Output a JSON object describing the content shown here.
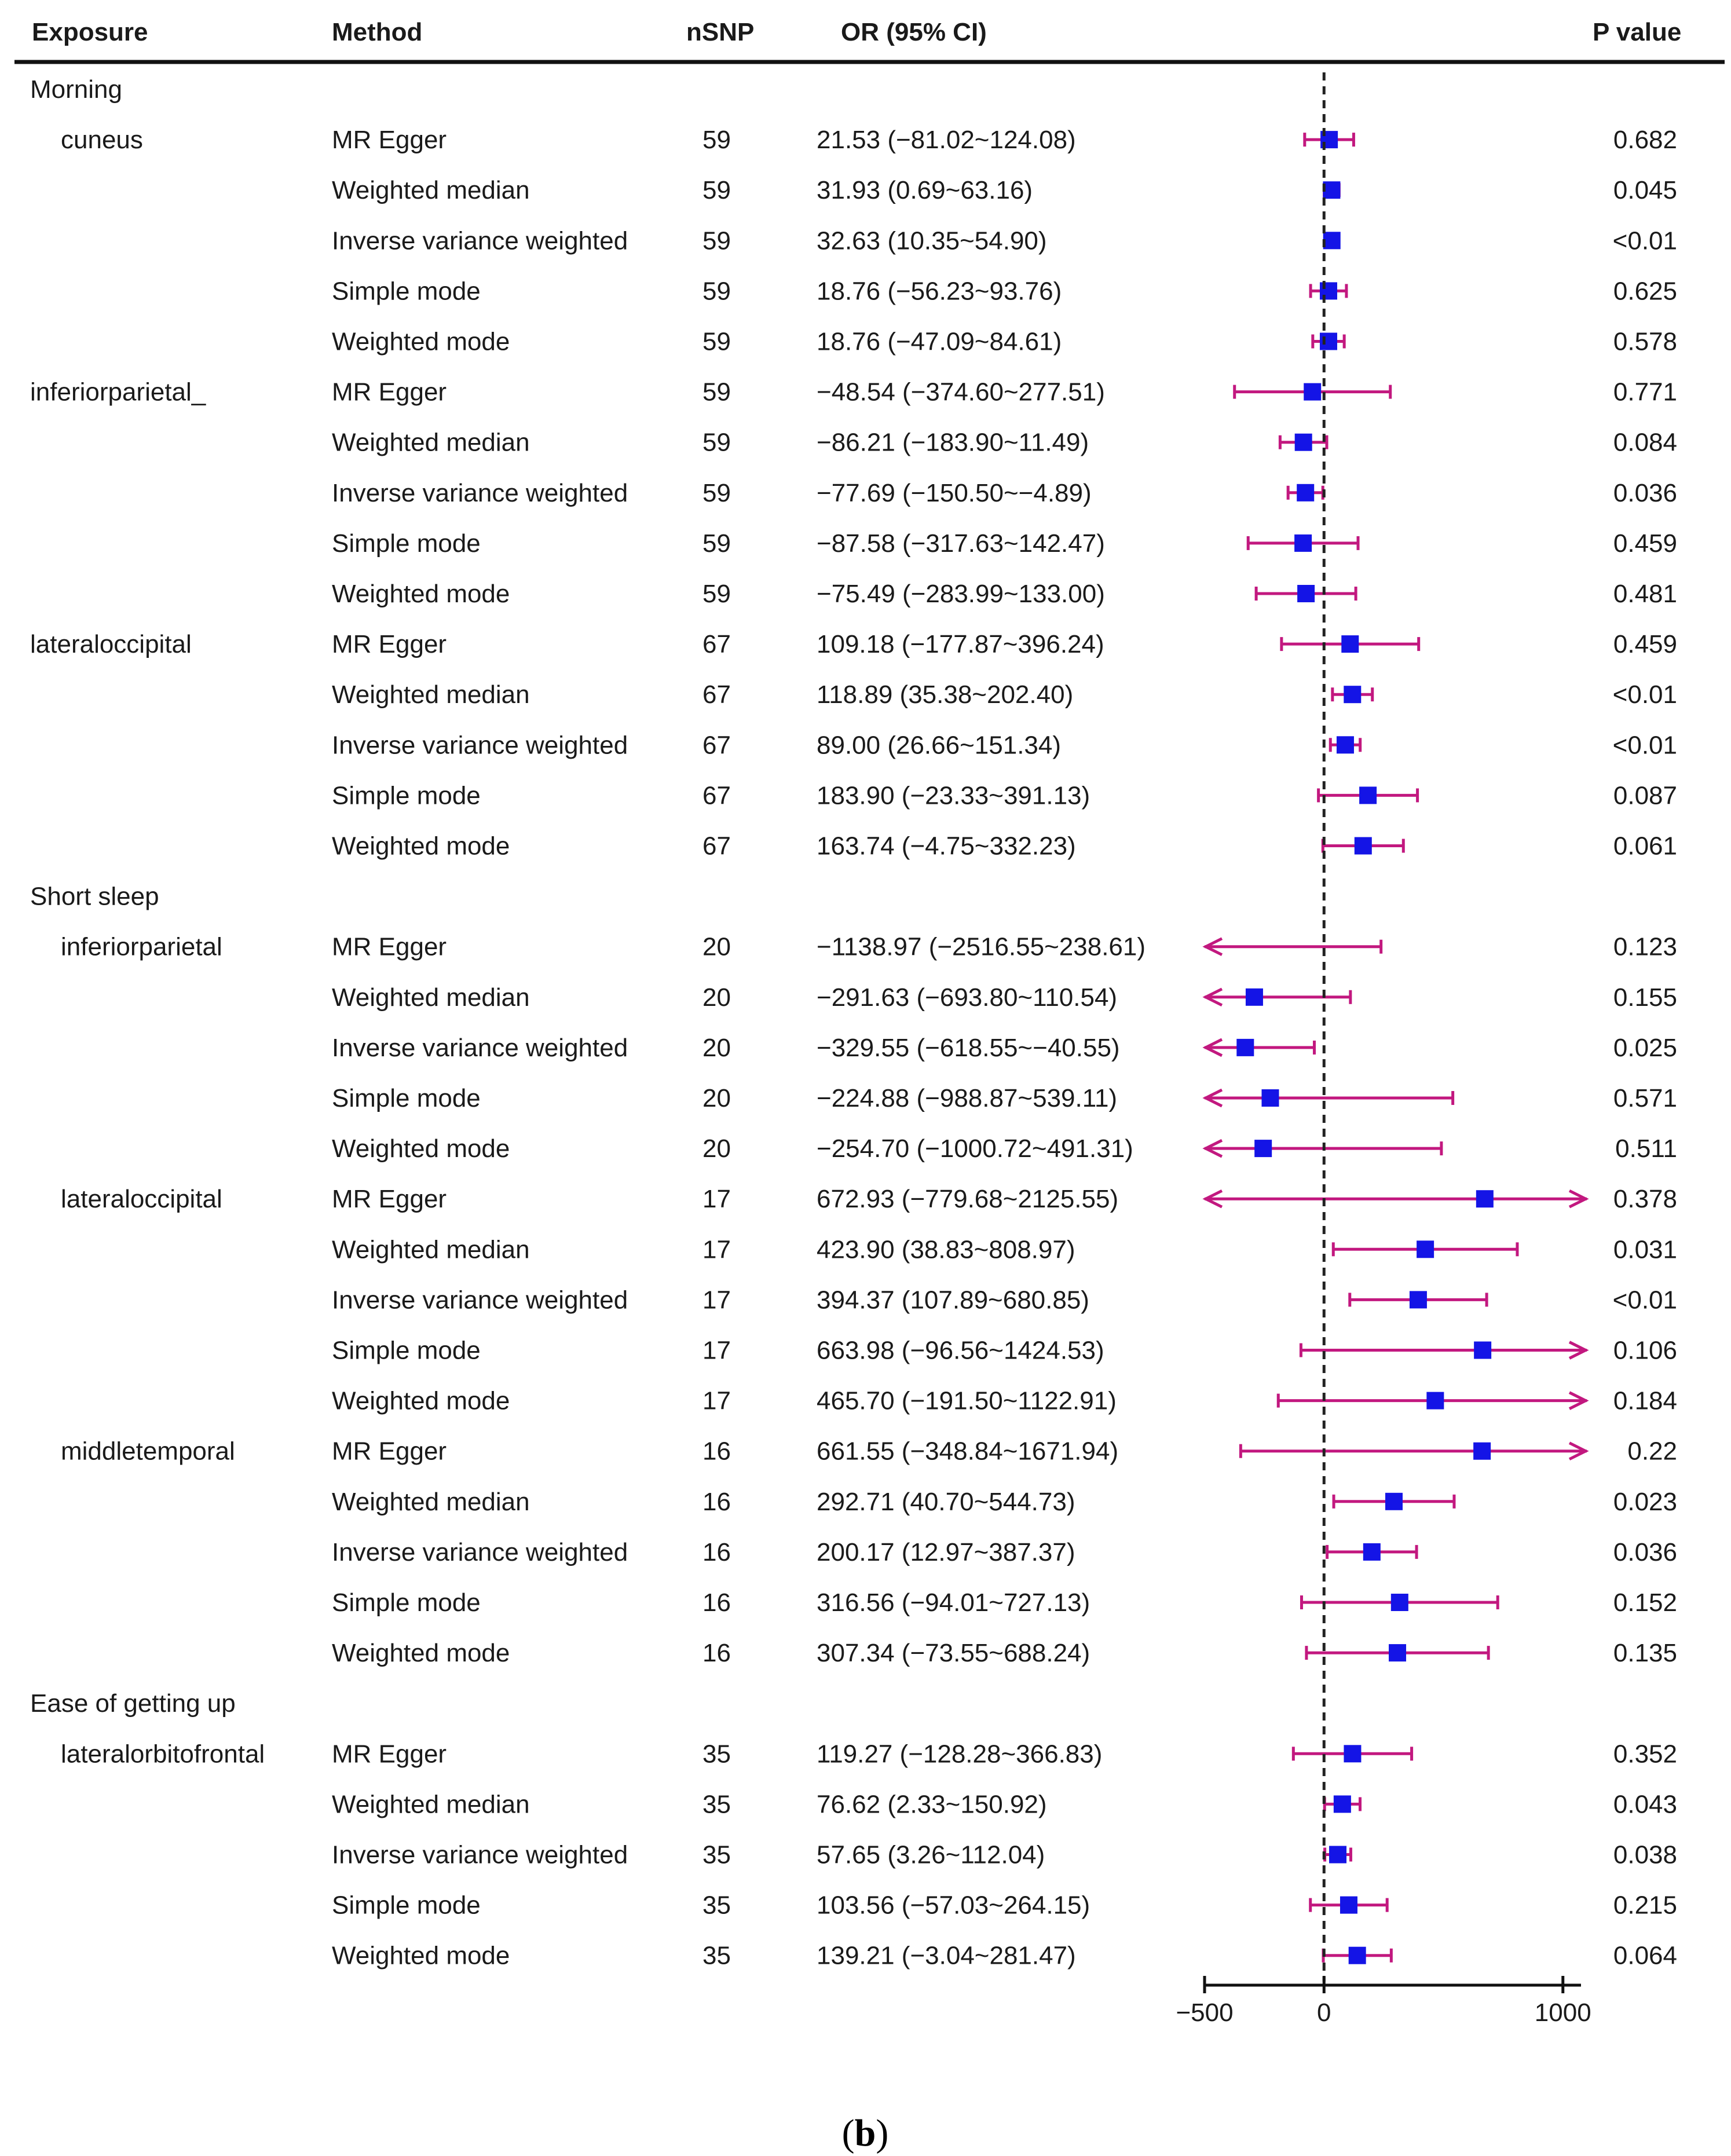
{
  "chart_data": {
    "type": "forest",
    "caption_prefix": "(",
    "caption_letter": "b",
    "caption_suffix": ")",
    "headers": {
      "exposure": "Exposure",
      "method": "Method",
      "nsnp": "nSNP",
      "or": "OR (95% CI)",
      "p": "P value"
    },
    "x_axis": {
      "range": [
        -500,
        1100
      ],
      "ticks": [
        -500,
        0,
        1000
      ],
      "tick_labels": [
        "−500",
        "0",
        "1000"
      ],
      "reference_line": 0
    },
    "colors": {
      "point": "#1414e6",
      "ci": "#c2187f",
      "reference": "#222222",
      "text": "#1a1a1a"
    },
    "rows": [
      {
        "type": "group",
        "label": "Morning"
      },
      {
        "type": "data",
        "exposure": "cuneus",
        "method": "MR Egger",
        "nsnp": "59",
        "or_text": "21.53 (−81.02~124.08)",
        "p": "0.682",
        "or": 21.53,
        "lo": -81.02,
        "hi": 124.08
      },
      {
        "type": "data",
        "exposure": "",
        "method": "Weighted median",
        "nsnp": "59",
        "or_text": "31.93 (0.69~63.16)",
        "p": "0.045",
        "or": 31.93,
        "lo": 0.69,
        "hi": 63.16
      },
      {
        "type": "data",
        "exposure": "",
        "method": "Inverse variance weighted",
        "nsnp": "59",
        "or_text": "32.63 (10.35~54.90)",
        "p": "<0.01",
        "or": 32.63,
        "lo": 10.35,
        "hi": 54.9
      },
      {
        "type": "data",
        "exposure": "",
        "method": "Simple mode",
        "nsnp": "59",
        "or_text": "18.76 (−56.23~93.76)",
        "p": "0.625",
        "or": 18.76,
        "lo": -56.23,
        "hi": 93.76
      },
      {
        "type": "data",
        "exposure": "",
        "method": "Weighted mode",
        "nsnp": "59",
        "or_text": "18.76 (−47.09~84.61)",
        "p": "0.578",
        "or": 18.76,
        "lo": -47.09,
        "hi": 84.61
      },
      {
        "type": "data",
        "exposure": "inferiorparietal_",
        "method": "MR Egger",
        "nsnp": "59",
        "or_text": "−48.54 (−374.60~277.51)",
        "p": "0.771",
        "or": -48.54,
        "lo": -374.6,
        "hi": 277.51,
        "flush": true
      },
      {
        "type": "data",
        "exposure": "",
        "method": "Weighted median",
        "nsnp": "59",
        "or_text": "−86.21 (−183.90~11.49)",
        "p": "0.084",
        "or": -86.21,
        "lo": -183.9,
        "hi": 11.49
      },
      {
        "type": "data",
        "exposure": "",
        "method": "Inverse variance weighted",
        "nsnp": "59",
        "or_text": "−77.69 (−150.50~−4.89)",
        "p": "0.036",
        "or": -77.69,
        "lo": -150.5,
        "hi": -4.89
      },
      {
        "type": "data",
        "exposure": "",
        "method": "Simple mode",
        "nsnp": "59",
        "or_text": "−87.58 (−317.63~142.47)",
        "p": "0.459",
        "or": -87.58,
        "lo": -317.63,
        "hi": 142.47
      },
      {
        "type": "data",
        "exposure": "",
        "method": "Weighted mode",
        "nsnp": "59",
        "or_text": "−75.49 (−283.99~133.00)",
        "p": "0.481",
        "or": -75.49,
        "lo": -283.99,
        "hi": 133.0
      },
      {
        "type": "data",
        "exposure": "lateraloccipital",
        "method": "MR Egger",
        "nsnp": "67",
        "or_text": "109.18 (−177.87~396.24)",
        "p": "0.459",
        "or": 109.18,
        "lo": -177.87,
        "hi": 396.24,
        "flush": true
      },
      {
        "type": "data",
        "exposure": "",
        "method": "Weighted median",
        "nsnp": "67",
        "or_text": "118.89 (35.38~202.40)",
        "p": "<0.01",
        "or": 118.89,
        "lo": 35.38,
        "hi": 202.4
      },
      {
        "type": "data",
        "exposure": "",
        "method": "Inverse variance weighted",
        "nsnp": "67",
        "or_text": "89.00 (26.66~151.34)",
        "p": "<0.01",
        "or": 89.0,
        "lo": 26.66,
        "hi": 151.34
      },
      {
        "type": "data",
        "exposure": "",
        "method": "Simple mode",
        "nsnp": "67",
        "or_text": "183.90 (−23.33~391.13)",
        "p": "0.087",
        "or": 183.9,
        "lo": -23.33,
        "hi": 391.13
      },
      {
        "type": "data",
        "exposure": "",
        "method": "Weighted mode",
        "nsnp": "67",
        "or_text": "163.74 (−4.75~332.23)",
        "p": "0.061",
        "or": 163.74,
        "lo": -4.75,
        "hi": 332.23
      },
      {
        "type": "group",
        "label": "Short sleep"
      },
      {
        "type": "data",
        "exposure": "inferiorparietal",
        "method": "MR Egger",
        "nsnp": "20",
        "or_text": "−1138.97 (−2516.55~238.61)",
        "p": "0.123",
        "or": -1138.97,
        "lo": -2516.55,
        "hi": 238.61
      },
      {
        "type": "data",
        "exposure": "",
        "method": "Weighted median",
        "nsnp": "20",
        "or_text": "−291.63 (−693.80~110.54)",
        "p": "0.155",
        "or": -291.63,
        "lo": -693.8,
        "hi": 110.54
      },
      {
        "type": "data",
        "exposure": "",
        "method": "Inverse variance weighted",
        "nsnp": "20",
        "or_text": "−329.55 (−618.55~−40.55)",
        "p": "0.025",
        "or": -329.55,
        "lo": -618.55,
        "hi": -40.55
      },
      {
        "type": "data",
        "exposure": "",
        "method": "Simple mode",
        "nsnp": "20",
        "or_text": "−224.88 (−988.87~539.11)",
        "p": "0.571",
        "or": -224.88,
        "lo": -988.87,
        "hi": 539.11
      },
      {
        "type": "data",
        "exposure": "",
        "method": "Weighted mode",
        "nsnp": "20",
        "or_text": "−254.70 (−1000.72~491.31)",
        "p": "0.511",
        "or": -254.7,
        "lo": -1000.72,
        "hi": 491.31
      },
      {
        "type": "data",
        "exposure": "lateraloccipital",
        "method": "MR Egger",
        "nsnp": "17",
        "or_text": "672.93 (−779.68~2125.55)",
        "p": "0.378",
        "or": 672.93,
        "lo": -779.68,
        "hi": 2125.55
      },
      {
        "type": "data",
        "exposure": "",
        "method": "Weighted median",
        "nsnp": "17",
        "or_text": "423.90 (38.83~808.97)",
        "p": "0.031",
        "or": 423.9,
        "lo": 38.83,
        "hi": 808.97
      },
      {
        "type": "data",
        "exposure": "",
        "method": "Inverse variance weighted",
        "nsnp": "17",
        "or_text": "394.37 (107.89~680.85)",
        "p": "<0.01",
        "or": 394.37,
        "lo": 107.89,
        "hi": 680.85
      },
      {
        "type": "data",
        "exposure": "",
        "method": "Simple mode",
        "nsnp": "17",
        "or_text": "663.98 (−96.56~1424.53)",
        "p": "0.106",
        "or": 663.98,
        "lo": -96.56,
        "hi": 1424.53
      },
      {
        "type": "data",
        "exposure": "",
        "method": "Weighted mode",
        "nsnp": "17",
        "or_text": "465.70 (−191.50~1122.91)",
        "p": "0.184",
        "or": 465.7,
        "lo": -191.5,
        "hi": 1122.91
      },
      {
        "type": "data",
        "exposure": "middletemporal",
        "method": "MR Egger",
        "nsnp": "16",
        "or_text": "661.55 (−348.84~1671.94)",
        "p": "0.22",
        "or": 661.55,
        "lo": -348.84,
        "hi": 1671.94
      },
      {
        "type": "data",
        "exposure": "",
        "method": "Weighted median",
        "nsnp": "16",
        "or_text": "292.71 (40.70~544.73)",
        "p": "0.023",
        "or": 292.71,
        "lo": 40.7,
        "hi": 544.73
      },
      {
        "type": "data",
        "exposure": "",
        "method": "Inverse variance weighted",
        "nsnp": "16",
        "or_text": "200.17 (12.97~387.37)",
        "p": "0.036",
        "or": 200.17,
        "lo": 12.97,
        "hi": 387.37
      },
      {
        "type": "data",
        "exposure": "",
        "method": "Simple mode",
        "nsnp": "16",
        "or_text": "316.56 (−94.01~727.13)",
        "p": "0.152",
        "or": 316.56,
        "lo": -94.01,
        "hi": 727.13
      },
      {
        "type": "data",
        "exposure": "",
        "method": "Weighted mode",
        "nsnp": "16",
        "or_text": "307.34 (−73.55~688.24)",
        "p": "0.135",
        "or": 307.34,
        "lo": -73.55,
        "hi": 688.24
      },
      {
        "type": "group",
        "label": "Ease of getting up"
      },
      {
        "type": "data",
        "exposure": "lateralorbitofrontal",
        "method": "MR Egger",
        "nsnp": "35",
        "or_text": "119.27 (−128.28~366.83)",
        "p": "0.352",
        "or": 119.27,
        "lo": -128.28,
        "hi": 366.83
      },
      {
        "type": "data",
        "exposure": "",
        "method": "Weighted median",
        "nsnp": "35",
        "or_text": "76.62 (2.33~150.92)",
        "p": "0.043",
        "or": 76.62,
        "lo": 2.33,
        "hi": 150.92
      },
      {
        "type": "data",
        "exposure": "",
        "method": "Inverse variance weighted",
        "nsnp": "35",
        "or_text": "57.65 (3.26~112.04)",
        "p": "0.038",
        "or": 57.65,
        "lo": 3.26,
        "hi": 112.04
      },
      {
        "type": "data",
        "exposure": "",
        "method": "Simple mode",
        "nsnp": "35",
        "or_text": "103.56 (−57.03~264.15)",
        "p": "0.215",
        "or": 103.56,
        "lo": -57.03,
        "hi": 264.15
      },
      {
        "type": "data",
        "exposure": "",
        "method": "Weighted mode",
        "nsnp": "35",
        "or_text": "139.21 (−3.04~281.47)",
        "p": "0.064",
        "or": 139.21,
        "lo": -3.04,
        "hi": 281.47
      }
    ]
  }
}
